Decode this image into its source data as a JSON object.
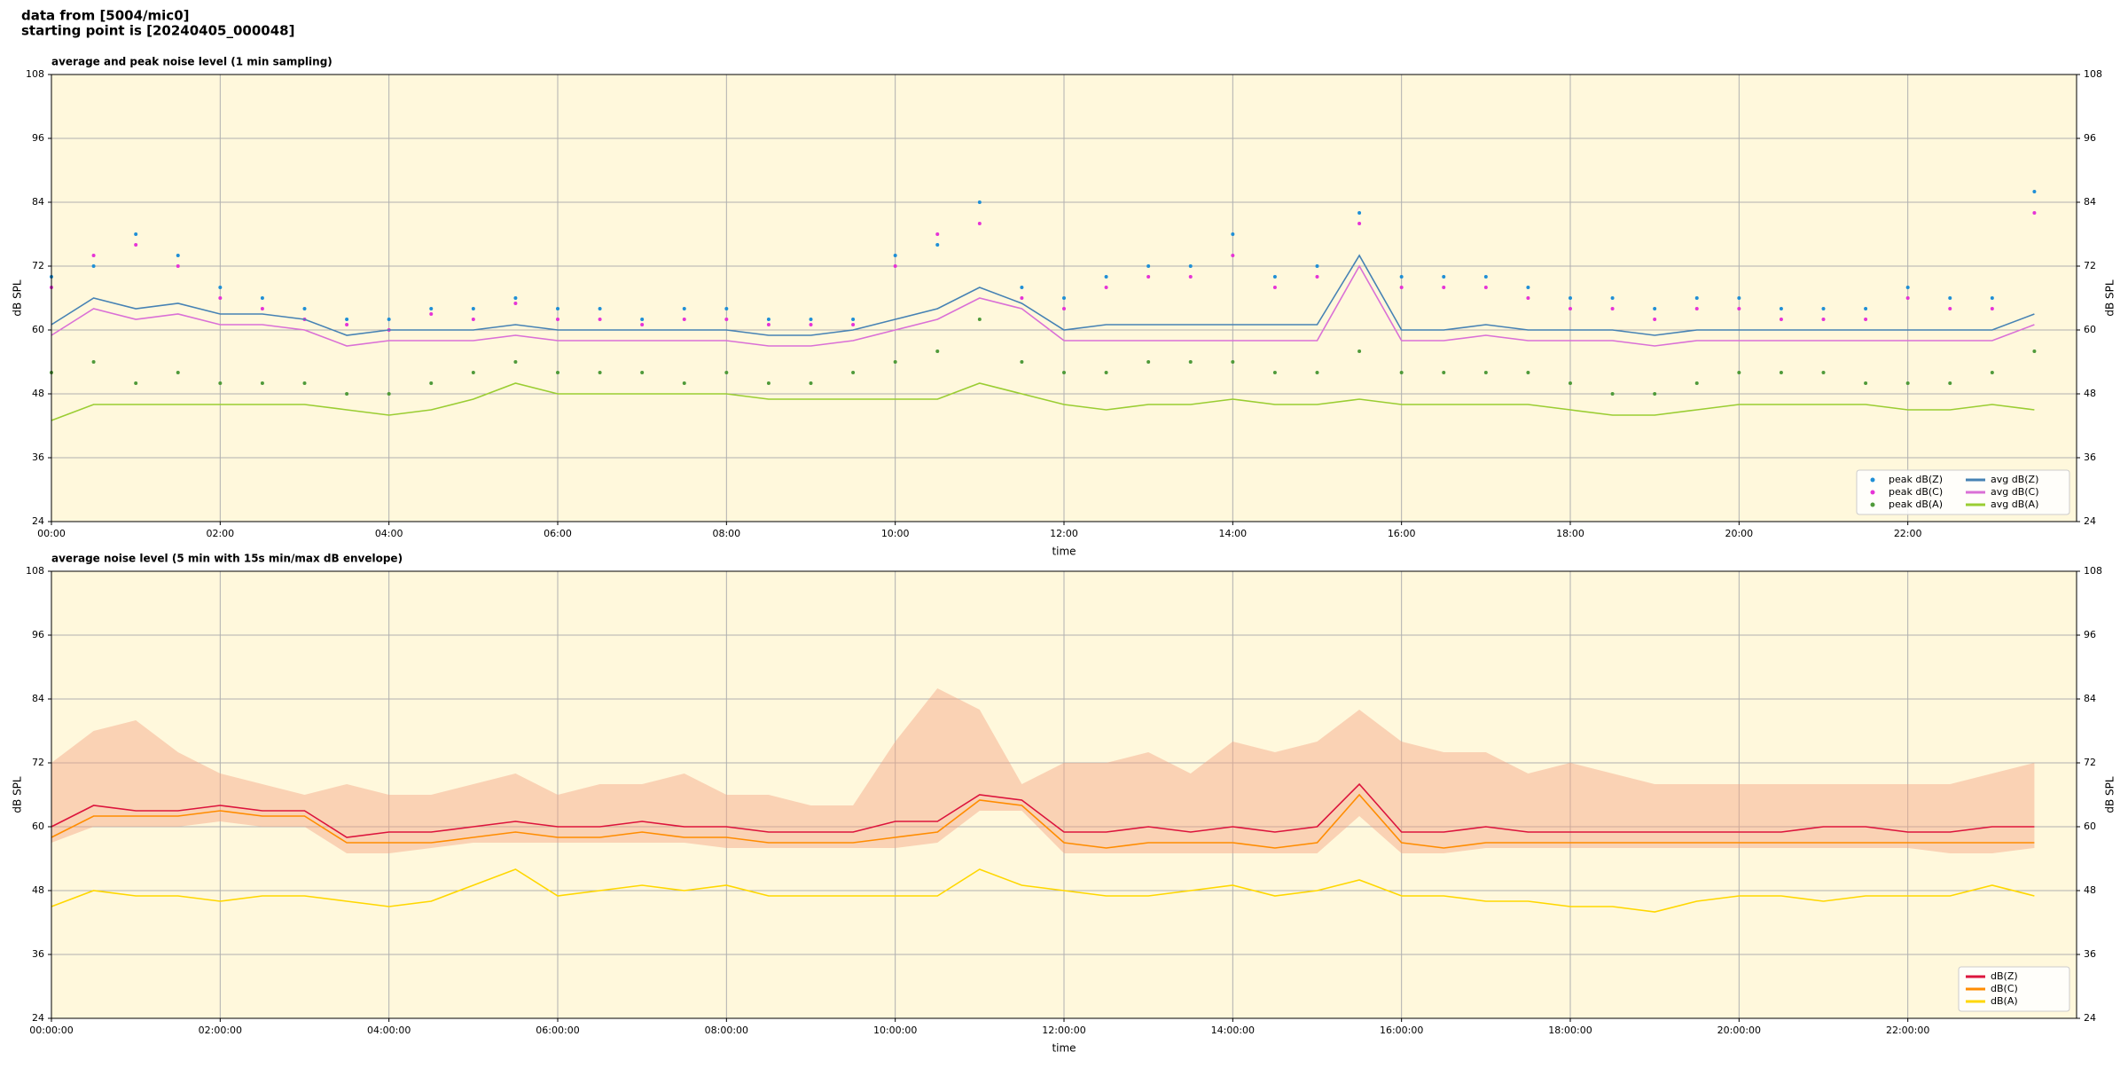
{
  "header": {
    "line1": "data from [5004/mic0]",
    "line2": "starting point is [20240405_000048]"
  },
  "chart_data": [
    {
      "type": "line",
      "title": "average and peak noise level (1 min sampling)",
      "xlabel": "time",
      "ylabel": "dB SPL",
      "x": [
        0,
        0.5,
        1,
        1.5,
        2,
        2.5,
        3,
        3.5,
        4,
        4.5,
        5,
        5.5,
        6,
        6.5,
        7,
        7.5,
        8,
        8.5,
        9,
        9.5,
        10,
        10.5,
        11,
        11.5,
        12,
        12.5,
        13,
        13.5,
        14,
        14.5,
        15,
        15.5,
        16,
        16.5,
        17,
        17.5,
        18,
        18.5,
        19,
        19.5,
        20,
        20.5,
        21,
        21.5,
        22,
        22.5,
        23,
        23.5
      ],
      "xlim": [
        0,
        24
      ],
      "ylim": [
        24,
        108
      ],
      "yticks": [
        24,
        36,
        48,
        60,
        72,
        84,
        96,
        108
      ],
      "xticks": [
        {
          "value": 0,
          "label": "00:00"
        },
        {
          "value": 2,
          "label": "02:00"
        },
        {
          "value": 4,
          "label": "04:00"
        },
        {
          "value": 6,
          "label": "06:00"
        },
        {
          "value": 8,
          "label": "08:00"
        },
        {
          "value": 10,
          "label": "10:00"
        },
        {
          "value": 12,
          "label": "12:00"
        },
        {
          "value": 14,
          "label": "14:00"
        },
        {
          "value": 16,
          "label": "16:00"
        },
        {
          "value": 18,
          "label": "18:00"
        },
        {
          "value": 20,
          "label": "20:00"
        },
        {
          "value": 22,
          "label": "22:00"
        }
      ],
      "grid": true,
      "legend": "lower right",
      "legend_columns": 2,
      "series": [
        {
          "name": "peak dB(Z)",
          "kind": "scatter",
          "color": "#1f8fd6",
          "values": [
            70,
            72,
            78,
            74,
            68,
            66,
            64,
            62,
            62,
            64,
            64,
            66,
            64,
            64,
            62,
            64,
            64,
            62,
            62,
            62,
            74,
            76,
            84,
            68,
            66,
            70,
            72,
            72,
            78,
            70,
            72,
            82,
            70,
            70,
            70,
            68,
            66,
            66,
            64,
            66,
            66,
            64,
            64,
            64,
            68,
            66,
            66,
            86
          ]
        },
        {
          "name": "peak dB(C)",
          "kind": "scatter",
          "color": "#e633d6",
          "values": [
            68,
            74,
            76,
            72,
            66,
            64,
            62,
            61,
            60,
            63,
            62,
            65,
            62,
            62,
            61,
            62,
            62,
            61,
            61,
            61,
            72,
            78,
            80,
            66,
            64,
            68,
            70,
            70,
            74,
            68,
            70,
            80,
            68,
            68,
            68,
            66,
            64,
            64,
            62,
            64,
            64,
            62,
            62,
            62,
            66,
            64,
            64,
            82
          ]
        },
        {
          "name": "peak dB(A)",
          "kind": "scatter",
          "color": "#4f9a3a",
          "values": [
            52,
            54,
            50,
            52,
            50,
            50,
            50,
            48,
            48,
            50,
            52,
            54,
            52,
            52,
            52,
            50,
            52,
            50,
            50,
            52,
            54,
            56,
            62,
            54,
            52,
            52,
            54,
            54,
            54,
            52,
            52,
            56,
            52,
            52,
            52,
            52,
            50,
            48,
            48,
            50,
            52,
            52,
            52,
            50,
            50,
            50,
            52,
            56
          ]
        },
        {
          "name": "avg dB(Z)",
          "kind": "line",
          "color": "#4682b4",
          "values": [
            61,
            66,
            64,
            65,
            63,
            63,
            62,
            59,
            60,
            60,
            60,
            61,
            60,
            60,
            60,
            60,
            60,
            59,
            59,
            60,
            62,
            64,
            68,
            65,
            60,
            61,
            61,
            61,
            61,
            61,
            61,
            74,
            60,
            60,
            61,
            60,
            60,
            60,
            59,
            60,
            60,
            60,
            60,
            60,
            60,
            60,
            60,
            63
          ]
        },
        {
          "name": "avg dB(C)",
          "kind": "line",
          "color": "#da70d6",
          "values": [
            59,
            64,
            62,
            63,
            61,
            61,
            60,
            57,
            58,
            58,
            58,
            59,
            58,
            58,
            58,
            58,
            58,
            57,
            57,
            58,
            60,
            62,
            66,
            64,
            58,
            58,
            58,
            58,
            58,
            58,
            58,
            72,
            58,
            58,
            59,
            58,
            58,
            58,
            57,
            58,
            58,
            58,
            58,
            58,
            58,
            58,
            58,
            61
          ]
        },
        {
          "name": "avg dB(A)",
          "kind": "line",
          "color": "#9acd32",
          "values": [
            43,
            46,
            46,
            46,
            46,
            46,
            46,
            45,
            44,
            45,
            47,
            50,
            48,
            48,
            48,
            48,
            48,
            47,
            47,
            47,
            47,
            47,
            50,
            48,
            46,
            45,
            46,
            46,
            47,
            46,
            46,
            47,
            46,
            46,
            46,
            46,
            45,
            44,
            44,
            45,
            46,
            46,
            46,
            46,
            45,
            45,
            46,
            45
          ]
        }
      ]
    },
    {
      "type": "line",
      "title": "average noise level (5 min with 15s min/max dB envelope)",
      "xlabel": "time",
      "ylabel": "dB SPL",
      "x": [
        0,
        0.5,
        1,
        1.5,
        2,
        2.5,
        3,
        3.5,
        4,
        4.5,
        5,
        5.5,
        6,
        6.5,
        7,
        7.5,
        8,
        8.5,
        9,
        9.5,
        10,
        10.5,
        11,
        11.5,
        12,
        12.5,
        13,
        13.5,
        14,
        14.5,
        15,
        15.5,
        16,
        16.5,
        17,
        17.5,
        18,
        18.5,
        19,
        19.5,
        20,
        20.5,
        21,
        21.5,
        22,
        22.5,
        23,
        23.5
      ],
      "xlim": [
        0,
        24
      ],
      "ylim": [
        24,
        108
      ],
      "yticks": [
        24,
        36,
        48,
        60,
        72,
        84,
        96,
        108
      ],
      "xticks": [
        {
          "value": 0,
          "label": "00:00:00"
        },
        {
          "value": 2,
          "label": "02:00:00"
        },
        {
          "value": 4,
          "label": "04:00:00"
        },
        {
          "value": 6,
          "label": "06:00:00"
        },
        {
          "value": 8,
          "label": "08:00:00"
        },
        {
          "value": 10,
          "label": "10:00:00"
        },
        {
          "value": 12,
          "label": "12:00:00"
        },
        {
          "value": 14,
          "label": "14:00:00"
        },
        {
          "value": 16,
          "label": "16:00:00"
        },
        {
          "value": 18,
          "label": "18:00:00"
        },
        {
          "value": 20,
          "label": "20:00:00"
        },
        {
          "value": 22,
          "label": "22:00:00"
        }
      ],
      "grid": true,
      "legend": "lower right",
      "legend_columns": 1,
      "envelope": {
        "color": "#f4a582",
        "min": [
          57,
          60,
          60,
          60,
          61,
          60,
          60,
          55,
          55,
          56,
          57,
          57,
          57,
          57,
          57,
          57,
          56,
          56,
          56,
          56,
          56,
          57,
          63,
          63,
          55,
          55,
          55,
          55,
          55,
          55,
          55,
          62,
          55,
          55,
          56,
          56,
          56,
          56,
          56,
          56,
          56,
          56,
          56,
          56,
          56,
          55,
          55,
          56
        ],
        "max": [
          72,
          78,
          80,
          74,
          70,
          68,
          66,
          68,
          66,
          66,
          68,
          70,
          66,
          68,
          68,
          70,
          66,
          66,
          64,
          64,
          76,
          86,
          82,
          68,
          72,
          72,
          74,
          70,
          76,
          74,
          76,
          82,
          76,
          74,
          74,
          70,
          72,
          70,
          68,
          68,
          68,
          68,
          68,
          68,
          68,
          68,
          70,
          72
        ]
      },
      "series": [
        {
          "name": "dB(Z)",
          "kind": "line",
          "color": "#dc143c",
          "values": [
            60,
            64,
            63,
            63,
            64,
            63,
            63,
            58,
            59,
            59,
            60,
            61,
            60,
            60,
            61,
            60,
            60,
            59,
            59,
            59,
            61,
            61,
            66,
            65,
            59,
            59,
            60,
            59,
            60,
            59,
            60,
            68,
            59,
            59,
            60,
            59,
            59,
            59,
            59,
            59,
            59,
            59,
            60,
            60,
            59,
            59,
            60,
            60
          ]
        },
        {
          "name": "dB(C)",
          "kind": "line",
          "color": "#ff8c00",
          "values": [
            58,
            62,
            62,
            62,
            63,
            62,
            62,
            57,
            57,
            57,
            58,
            59,
            58,
            58,
            59,
            58,
            58,
            57,
            57,
            57,
            58,
            59,
            65,
            64,
            57,
            56,
            57,
            57,
            57,
            56,
            57,
            66,
            57,
            56,
            57,
            57,
            57,
            57,
            57,
            57,
            57,
            57,
            57,
            57,
            57,
            57,
            57,
            57
          ]
        },
        {
          "name": "dB(A)",
          "kind": "line",
          "color": "#ffd700",
          "values": [
            45,
            48,
            47,
            47,
            46,
            47,
            47,
            46,
            45,
            46,
            49,
            52,
            47,
            48,
            49,
            48,
            49,
            47,
            47,
            47,
            47,
            47,
            52,
            49,
            48,
            47,
            47,
            48,
            49,
            47,
            48,
            50,
            47,
            47,
            46,
            46,
            45,
            45,
            44,
            46,
            47,
            47,
            46,
            47,
            47,
            47,
            49,
            47
          ]
        }
      ]
    }
  ]
}
